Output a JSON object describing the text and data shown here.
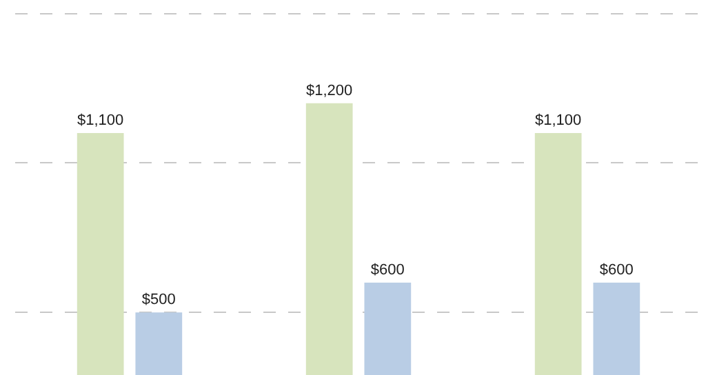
{
  "chart_data": {
    "type": "bar",
    "categories": [
      null,
      null,
      null
    ],
    "series": [
      {
        "color": "#d7e4bd",
        "values": [
          1100,
          1200,
          1100
        ],
        "value_labels": [
          "$1,100",
          "$1,200",
          "$1,100"
        ]
      },
      {
        "color": "#b9cde5",
        "values": [
          500,
          600,
          600
        ],
        "value_labels": [
          "$500",
          "$600",
          "$600"
        ]
      }
    ],
    "ylim": [
      291,
      1545
    ],
    "yticks": [
      {
        "value": 500,
        "label": null
      },
      {
        "value": 1000,
        "label": null
      },
      {
        "value": 1500,
        "label": null
      }
    ],
    "grid": "y",
    "legend": false
  }
}
